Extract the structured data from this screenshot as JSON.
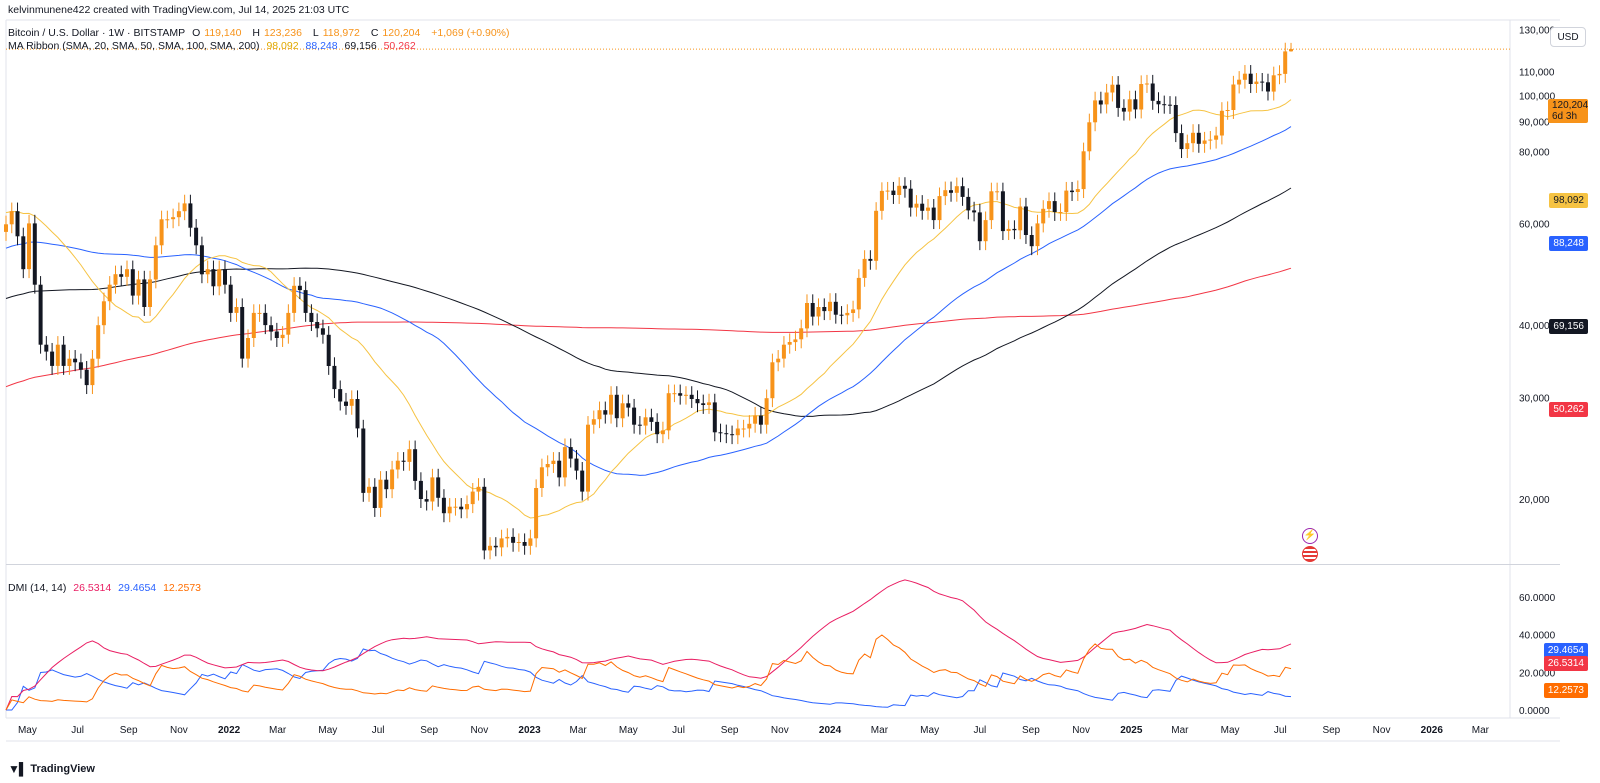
{
  "header": {
    "author_line": "kelvinmunene422 created with TradingView.com, Jul 14, 2025 21:03 UTC",
    "symbol": "Bitcoin / U.S. Dollar · 1W · BITSTAMP",
    "open_label": "O",
    "open": "119,140",
    "high_label": "H",
    "high": "123,236",
    "low_label": "L",
    "low": "118,972",
    "close_label": "C",
    "close": "120,204",
    "change": "+1,069 (+0.90%)"
  },
  "ma_ribbon": {
    "label": "MA Ribbon (SMA, 20, SMA, 50, SMA, 100, SMA, 200)",
    "v20": "98,092",
    "v50": "88,248",
    "v100": "69,156",
    "v200": "50,262"
  },
  "dmi": {
    "label": "DMI (14, 14)",
    "plus_di": "26.5314",
    "minus_di": "29.4654",
    "adx": "12.2573"
  },
  "currency_button": "USD",
  "price_tag": {
    "price": "120,204",
    "countdown": "6d 3h"
  },
  "axis_badges": {
    "sma20": "98,092",
    "sma50": "88,248",
    "sma100": "69,156",
    "sma200": "50,262",
    "dmi_blue": "29.4654",
    "dmi_red": "26.5314",
    "dmi_orange": "12.2573"
  },
  "footer": {
    "brand": "TradingView"
  },
  "colors": {
    "up": "#f7931a",
    "down": "#131722",
    "sma20": "#f6c343",
    "sma50": "#2962ff",
    "sma100": "#131722",
    "sma200": "#f23645",
    "di_plus": "#e91e63",
    "di_minus": "#2962ff",
    "adx": "#ff6d00"
  },
  "chart_data": [
    {
      "type": "candlestick",
      "title": "Bitcoin / U.S. Dollar · 1W · BITSTAMP",
      "price_axis_ticks": [
        "130,000",
        "110,000",
        "100,000",
        "90,000",
        "80,000",
        "60,000",
        "40,000",
        "30,000",
        "20,000"
      ],
      "price_axis_scale": "log",
      "ylim": [
        15500,
        135000
      ],
      "time_axis_labels": [
        "May",
        "Jul",
        "Sep",
        "Nov",
        "2022",
        "Mar",
        "May",
        "Jul",
        "Sep",
        "Nov",
        "2023",
        "Mar",
        "May",
        "Jul",
        "Sep",
        "Nov",
        "2024",
        "Mar",
        "May",
        "Jul",
        "Sep",
        "Nov",
        "2025",
        "Mar",
        "May",
        "Jul",
        "Sep",
        "Nov",
        "2026",
        "Mar"
      ],
      "xlim_dates": [
        "2021-04-05",
        "2026-04-06"
      ],
      "weekly_close": [
        [
          "2021-04-05",
          59800
        ],
        [
          "2021-04-12",
          63000
        ],
        [
          "2021-04-19",
          57000
        ],
        [
          "2021-04-26",
          50000
        ],
        [
          "2021-05-03",
          60000
        ],
        [
          "2021-05-10",
          47000
        ],
        [
          "2021-05-17",
          37000
        ],
        [
          "2021-05-24",
          36000
        ],
        [
          "2021-05-31",
          34000
        ],
        [
          "2021-06-07",
          37000
        ],
        [
          "2021-06-14",
          34000
        ],
        [
          "2021-06-21",
          35000
        ],
        [
          "2021-06-28",
          34500
        ],
        [
          "2021-07-05",
          33500
        ],
        [
          "2021-07-12",
          31500
        ],
        [
          "2021-07-19",
          35000
        ],
        [
          "2021-07-26",
          40000
        ],
        [
          "2021-08-02",
          44000
        ],
        [
          "2021-08-09",
          47000
        ],
        [
          "2021-08-16",
          49000
        ],
        [
          "2021-08-23",
          48500
        ],
        [
          "2021-08-30",
          50000
        ],
        [
          "2021-09-06",
          45000
        ],
        [
          "2021-09-13",
          48000
        ],
        [
          "2021-09-20",
          43000
        ],
        [
          "2021-09-27",
          48000
        ],
        [
          "2021-10-04",
          55000
        ],
        [
          "2021-10-11",
          61000
        ],
        [
          "2021-10-18",
          61000
        ],
        [
          "2021-10-25",
          61500
        ],
        [
          "2021-11-01",
          63000
        ],
        [
          "2021-11-08",
          65000
        ],
        [
          "2021-11-15",
          59000
        ],
        [
          "2021-11-22",
          55000
        ],
        [
          "2021-11-29",
          49000
        ],
        [
          "2021-12-06",
          50000
        ],
        [
          "2021-12-13",
          46700
        ],
        [
          "2021-12-20",
          50000
        ],
        [
          "2021-12-27",
          47000
        ],
        [
          "2022-01-03",
          42000
        ],
        [
          "2022-01-10",
          43000
        ],
        [
          "2022-01-17",
          35000
        ],
        [
          "2022-01-24",
          38000
        ],
        [
          "2022-01-31",
          42000
        ],
        [
          "2022-02-07",
          42000
        ],
        [
          "2022-02-14",
          40000
        ],
        [
          "2022-02-21",
          39000
        ],
        [
          "2022-02-28",
          38000
        ],
        [
          "2022-03-07",
          38500
        ],
        [
          "2022-03-14",
          42000
        ],
        [
          "2022-03-21",
          46800
        ],
        [
          "2022-03-28",
          46000
        ],
        [
          "2022-04-04",
          42000
        ],
        [
          "2022-04-11",
          40500
        ],
        [
          "2022-04-18",
          39500
        ],
        [
          "2022-04-25",
          38500
        ],
        [
          "2022-05-02",
          34000
        ],
        [
          "2022-05-09",
          31000
        ],
        [
          "2022-05-16",
          29500
        ],
        [
          "2022-05-23",
          29000
        ],
        [
          "2022-05-30",
          29800
        ],
        [
          "2022-06-06",
          26500
        ],
        [
          "2022-06-13",
          20500
        ],
        [
          "2022-06-20",
          21000
        ],
        [
          "2022-06-27",
          19300
        ],
        [
          "2022-07-04",
          21600
        ],
        [
          "2022-07-11",
          20800
        ],
        [
          "2022-07-18",
          22500
        ],
        [
          "2022-07-25",
          23300
        ],
        [
          "2022-08-01",
          23200
        ],
        [
          "2022-08-08",
          24400
        ],
        [
          "2022-08-15",
          21500
        ],
        [
          "2022-08-22",
          20000
        ],
        [
          "2022-08-29",
          19800
        ],
        [
          "2022-09-05",
          21800
        ],
        [
          "2022-09-12",
          20100
        ],
        [
          "2022-09-19",
          18900
        ],
        [
          "2022-09-26",
          19400
        ],
        [
          "2022-10-03",
          19400
        ],
        [
          "2022-10-10",
          19200
        ],
        [
          "2022-10-17",
          19600
        ],
        [
          "2022-10-24",
          20600
        ],
        [
          "2022-10-31",
          21000
        ],
        [
          "2022-11-07",
          16300
        ],
        [
          "2022-11-14",
          16600
        ],
        [
          "2022-11-21",
          16500
        ],
        [
          "2022-11-28",
          17100
        ],
        [
          "2022-12-05",
          17200
        ],
        [
          "2022-12-12",
          16800
        ],
        [
          "2022-12-19",
          16850
        ],
        [
          "2022-12-26",
          16600
        ],
        [
          "2023-01-02",
          17100
        ],
        [
          "2023-01-09",
          20900
        ],
        [
          "2023-01-16",
          22700
        ],
        [
          "2023-01-23",
          23000
        ],
        [
          "2023-01-30",
          23300
        ],
        [
          "2023-02-06",
          21800
        ],
        [
          "2023-02-13",
          24600
        ],
        [
          "2023-02-20",
          23500
        ],
        [
          "2023-02-27",
          22400
        ],
        [
          "2023-03-06",
          20600
        ],
        [
          "2023-03-13",
          26900
        ],
        [
          "2023-03-20",
          27500
        ],
        [
          "2023-03-27",
          28500
        ],
        [
          "2023-04-03",
          28000
        ],
        [
          "2023-04-10",
          30300
        ],
        [
          "2023-04-17",
          27600
        ],
        [
          "2023-04-24",
          29300
        ],
        [
          "2023-05-01",
          28800
        ],
        [
          "2023-05-08",
          26900
        ],
        [
          "2023-05-15",
          26800
        ],
        [
          "2023-05-22",
          27700
        ],
        [
          "2023-05-29",
          27200
        ],
        [
          "2023-06-05",
          25900
        ],
        [
          "2023-06-12",
          26300
        ],
        [
          "2023-06-19",
          30500
        ],
        [
          "2023-06-26",
          30500
        ],
        [
          "2023-07-03",
          30200
        ],
        [
          "2023-07-10",
          30300
        ],
        [
          "2023-07-17",
          29800
        ],
        [
          "2023-07-24",
          29300
        ],
        [
          "2023-07-31",
          29100
        ],
        [
          "2023-08-07",
          29400
        ],
        [
          "2023-08-14",
          26100
        ],
        [
          "2023-08-21",
          26000
        ],
        [
          "2023-08-28",
          25900
        ],
        [
          "2023-09-04",
          25800
        ],
        [
          "2023-09-11",
          26500
        ],
        [
          "2023-09-18",
          26500
        ],
        [
          "2023-09-25",
          27000
        ],
        [
          "2023-10-02",
          27900
        ],
        [
          "2023-10-09",
          26900
        ],
        [
          "2023-10-16",
          29900
        ],
        [
          "2023-10-23",
          34500
        ],
        [
          "2023-10-30",
          35000
        ],
        [
          "2023-11-06",
          37000
        ],
        [
          "2023-11-13",
          37400
        ],
        [
          "2023-11-20",
          37800
        ],
        [
          "2023-11-27",
          39500
        ],
        [
          "2023-12-04",
          43700
        ],
        [
          "2023-12-11",
          41400
        ],
        [
          "2023-12-18",
          43000
        ],
        [
          "2023-12-25",
          42300
        ],
        [
          "2024-01-01",
          43900
        ],
        [
          "2024-01-08",
          41700
        ],
        [
          "2024-01-15",
          41600
        ],
        [
          "2024-01-22",
          42000
        ],
        [
          "2024-01-29",
          42600
        ],
        [
          "2024-02-05",
          48300
        ],
        [
          "2024-02-12",
          52100
        ],
        [
          "2024-02-19",
          51700
        ],
        [
          "2024-02-26",
          63100
        ],
        [
          "2024-03-04",
          68300
        ],
        [
          "2024-03-11",
          68400
        ],
        [
          "2024-03-18",
          67200
        ],
        [
          "2024-03-25",
          69700
        ],
        [
          "2024-04-01",
          68900
        ],
        [
          "2024-04-08",
          63900
        ],
        [
          "2024-04-15",
          64900
        ],
        [
          "2024-04-22",
          63100
        ],
        [
          "2024-04-29",
          63900
        ],
        [
          "2024-05-06",
          60800
        ],
        [
          "2024-05-13",
          66900
        ],
        [
          "2024-05-20",
          68500
        ],
        [
          "2024-05-27",
          67800
        ],
        [
          "2024-06-03",
          69600
        ],
        [
          "2024-06-10",
          66700
        ],
        [
          "2024-06-17",
          63200
        ],
        [
          "2024-06-24",
          62700
        ],
        [
          "2024-07-01",
          55900
        ],
        [
          "2024-07-08",
          60800
        ],
        [
          "2024-07-15",
          68200
        ],
        [
          "2024-07-22",
          68200
        ],
        [
          "2024-07-29",
          58200
        ],
        [
          "2024-08-05",
          58700
        ],
        [
          "2024-08-12",
          58400
        ],
        [
          "2024-08-19",
          64200
        ],
        [
          "2024-08-26",
          57300
        ],
        [
          "2024-09-02",
          54800
        ],
        [
          "2024-09-09",
          60000
        ],
        [
          "2024-09-16",
          63600
        ],
        [
          "2024-09-23",
          65600
        ],
        [
          "2024-09-30",
          62800
        ],
        [
          "2024-10-07",
          62800
        ],
        [
          "2024-10-14",
          68400
        ],
        [
          "2024-10-21",
          68000
        ],
        [
          "2024-10-28",
          68800
        ],
        [
          "2024-11-04",
          80000
        ],
        [
          "2024-11-11",
          89800
        ],
        [
          "2024-11-18",
          98000
        ],
        [
          "2024-11-25",
          96400
        ],
        [
          "2024-12-02",
          101100
        ],
        [
          "2024-12-09",
          104300
        ],
        [
          "2024-12-16",
          95100
        ],
        [
          "2024-12-23",
          93700
        ],
        [
          "2024-12-30",
          98400
        ],
        [
          "2025-01-06",
          94500
        ],
        [
          "2025-01-13",
          104600
        ],
        [
          "2025-01-20",
          104800
        ],
        [
          "2025-01-27",
          97800
        ],
        [
          "2025-02-03",
          96500
        ],
        [
          "2025-02-10",
          96300
        ],
        [
          "2025-02-17",
          96200
        ],
        [
          "2025-02-24",
          86000
        ],
        [
          "2025-03-03",
          80700
        ],
        [
          "2025-03-10",
          82600
        ],
        [
          "2025-03-17",
          86100
        ],
        [
          "2025-03-24",
          82400
        ],
        [
          "2025-03-31",
          83500
        ],
        [
          "2025-04-07",
          83800
        ],
        [
          "2025-04-14",
          85200
        ],
        [
          "2025-04-21",
          94000
        ],
        [
          "2025-04-28",
          94300
        ],
        [
          "2025-05-05",
          104400
        ],
        [
          "2025-05-12",
          106400
        ],
        [
          "2025-05-19",
          109000
        ],
        [
          "2025-05-26",
          104600
        ],
        [
          "2025-06-02",
          105600
        ],
        [
          "2025-06-09",
          105300
        ],
        [
          "2025-06-16",
          101500
        ],
        [
          "2025-06-23",
          108300
        ],
        [
          "2025-06-30",
          108900
        ],
        [
          "2025-07-07",
          119140
        ],
        [
          "2025-07-14",
          120204
        ]
      ],
      "last_candle": {
        "open": 119140,
        "high": 123236,
        "low": 118972,
        "close": 120204
      },
      "series": [
        {
          "name": "SMA 20",
          "last": 98092
        },
        {
          "name": "SMA 50",
          "last": 88248
        },
        {
          "name": "SMA 100",
          "last": 69156
        },
        {
          "name": "SMA 200",
          "last": 50262
        }
      ]
    },
    {
      "type": "line",
      "title": "DMI (14, 14)",
      "y_axis_ticks": [
        "60.0000",
        "40.0000",
        "20.0000",
        "0.0000"
      ],
      "ylim": [
        0,
        70
      ],
      "series": [
        {
          "name": "+DI",
          "last": 26.5314
        },
        {
          "name": "-DI",
          "last": 29.4654
        },
        {
          "name": "ADX",
          "last": 12.2573
        }
      ]
    }
  ]
}
